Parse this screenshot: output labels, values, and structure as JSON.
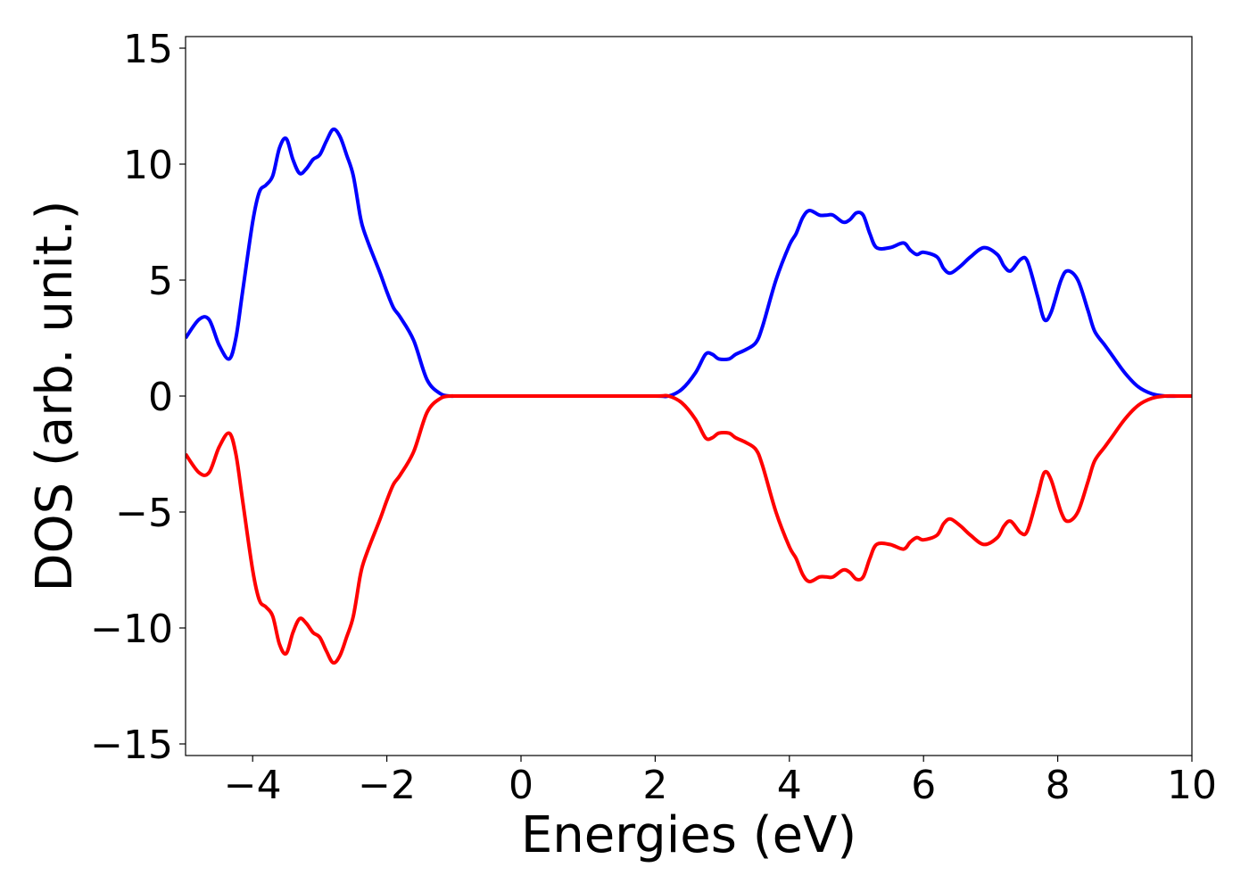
{
  "chart_data": {
    "type": "line",
    "title": "",
    "xlabel": "Energies (eV)",
    "ylabel": "DOS (arb. unit.)",
    "xlim": [
      -5,
      10
    ],
    "ylim": [
      -15.5,
      15.5
    ],
    "xticks": [
      -4,
      -2,
      0,
      2,
      4,
      6,
      8,
      10
    ],
    "xtick_labels": [
      "−4",
      "−2",
      "0",
      "2",
      "4",
      "6",
      "8",
      "10"
    ],
    "yticks": [
      -15,
      -10,
      -5,
      0,
      5,
      10,
      15
    ],
    "ytick_labels": [
      "−15",
      "−10",
      "−5",
      "0",
      "5",
      "10",
      "15"
    ],
    "grid": false,
    "legend": "none",
    "series": [
      {
        "color": "#0000ff",
        "x": [
          -5.0,
          -4.8,
          -4.65,
          -4.5,
          -4.35,
          -4.25,
          -4.15,
          -4.0,
          -3.9,
          -3.8,
          -3.7,
          -3.6,
          -3.5,
          -3.4,
          -3.3,
          -3.2,
          -3.1,
          -3.0,
          -2.9,
          -2.8,
          -2.7,
          -2.6,
          -2.5,
          -2.4,
          -2.35,
          -2.25,
          -2.1,
          -2.0,
          -1.9,
          -1.8,
          -1.6,
          -1.4,
          -1.2,
          -1.05,
          -1.0,
          -0.9,
          -0.8,
          -0.7,
          -0.6,
          -0.5,
          0.0,
          1.0,
          2.0,
          2.2,
          2.4,
          2.6,
          2.75,
          2.85,
          2.95,
          3.1,
          3.2,
          3.35,
          3.5,
          3.6,
          3.8,
          4.0,
          4.1,
          4.2,
          4.3,
          4.45,
          4.55,
          4.65,
          4.8,
          4.9,
          5.0,
          5.1,
          5.2,
          5.3,
          5.5,
          5.7,
          5.8,
          5.9,
          6.0,
          6.2,
          6.3,
          6.4,
          6.55,
          6.7,
          6.9,
          7.1,
          7.2,
          7.3,
          7.45,
          7.55,
          7.7,
          7.8,
          7.9,
          8.05,
          8.15,
          8.3,
          8.45,
          8.55,
          8.7,
          8.8,
          9.0,
          9.2,
          9.4,
          9.6,
          9.8,
          10.0
        ],
        "values": [
          2.5,
          3.3,
          3.3,
          2.2,
          1.6,
          2.5,
          4.5,
          7.5,
          8.8,
          9.1,
          9.5,
          10.7,
          11.1,
          10.2,
          9.6,
          9.8,
          10.2,
          10.4,
          11.0,
          11.5,
          11.2,
          10.4,
          9.5,
          7.8,
          7.2,
          6.4,
          5.3,
          4.5,
          3.8,
          3.4,
          2.4,
          0.7,
          0.1,
          0.0,
          0.0,
          0.0,
          0.0,
          0.0,
          0.0,
          0.0,
          0.0,
          0.0,
          0.0,
          0.0,
          0.3,
          1.0,
          1.8,
          1.8,
          1.6,
          1.6,
          1.8,
          2.0,
          2.3,
          3.0,
          5.0,
          6.5,
          7.0,
          7.7,
          8.0,
          7.8,
          7.8,
          7.8,
          7.5,
          7.6,
          7.9,
          7.8,
          7.0,
          6.4,
          6.4,
          6.6,
          6.3,
          6.1,
          6.2,
          6.0,
          5.5,
          5.3,
          5.6,
          6.0,
          6.4,
          6.1,
          5.6,
          5.4,
          5.9,
          5.8,
          4.3,
          3.3,
          3.6,
          5.0,
          5.4,
          5.0,
          3.7,
          2.8,
          2.2,
          1.8,
          1.0,
          0.4,
          0.1,
          0.0,
          0.0,
          0.0
        ],
        "mirror": false
      },
      {
        "color": "#ff0000",
        "x": [
          -5.0,
          -4.8,
          -4.65,
          -4.5,
          -4.35,
          -4.25,
          -4.15,
          -4.0,
          -3.9,
          -3.8,
          -3.7,
          -3.6,
          -3.5,
          -3.4,
          -3.3,
          -3.2,
          -3.1,
          -3.0,
          -2.9,
          -2.8,
          -2.7,
          -2.6,
          -2.5,
          -2.4,
          -2.35,
          -2.25,
          -2.1,
          -2.0,
          -1.9,
          -1.8,
          -1.6,
          -1.4,
          -1.2,
          -1.05,
          -1.0,
          -0.9,
          -0.8,
          -0.7,
          -0.6,
          -0.5,
          0.0,
          1.0,
          2.0,
          2.2,
          2.4,
          2.6,
          2.75,
          2.85,
          2.95,
          3.1,
          3.2,
          3.35,
          3.5,
          3.6,
          3.8,
          4.0,
          4.1,
          4.2,
          4.3,
          4.45,
          4.55,
          4.65,
          4.8,
          4.9,
          5.0,
          5.1,
          5.2,
          5.3,
          5.5,
          5.7,
          5.8,
          5.9,
          6.0,
          6.2,
          6.3,
          6.4,
          6.55,
          6.7,
          6.9,
          7.1,
          7.2,
          7.3,
          7.45,
          7.55,
          7.7,
          7.8,
          7.9,
          8.05,
          8.15,
          8.3,
          8.45,
          8.55,
          8.7,
          8.8,
          9.0,
          9.2,
          9.4,
          9.6,
          9.8,
          10.0
        ],
        "values": [
          -2.5,
          -3.3,
          -3.3,
          -2.2,
          -1.6,
          -2.5,
          -4.5,
          -7.5,
          -8.8,
          -9.1,
          -9.5,
          -10.7,
          -11.1,
          -10.2,
          -9.6,
          -9.8,
          -10.2,
          -10.4,
          -11.0,
          -11.5,
          -11.2,
          -10.4,
          -9.5,
          -7.8,
          -7.2,
          -6.4,
          -5.3,
          -4.5,
          -3.8,
          -3.4,
          -2.4,
          -0.7,
          -0.1,
          0.0,
          0.0,
          0.0,
          0.0,
          0.0,
          0.0,
          0.0,
          0.0,
          0.0,
          0.0,
          0.0,
          -0.3,
          -1.0,
          -1.8,
          -1.8,
          -1.6,
          -1.6,
          -1.8,
          -2.0,
          -2.3,
          -3.0,
          -5.0,
          -6.5,
          -7.0,
          -7.7,
          -8.0,
          -7.8,
          -7.8,
          -7.8,
          -7.5,
          -7.6,
          -7.9,
          -7.8,
          -7.0,
          -6.4,
          -6.4,
          -6.6,
          -6.3,
          -6.1,
          -6.2,
          -6.0,
          -5.5,
          -5.3,
          -5.6,
          -6.0,
          -6.4,
          -6.1,
          -5.6,
          -5.4,
          -5.9,
          -5.8,
          -4.3,
          -3.3,
          -3.6,
          -5.0,
          -5.4,
          -5.0,
          -3.7,
          -2.8,
          -2.2,
          -1.8,
          -1.0,
          -0.4,
          -0.1,
          0.0,
          0.0,
          0.0
        ]
      }
    ]
  }
}
